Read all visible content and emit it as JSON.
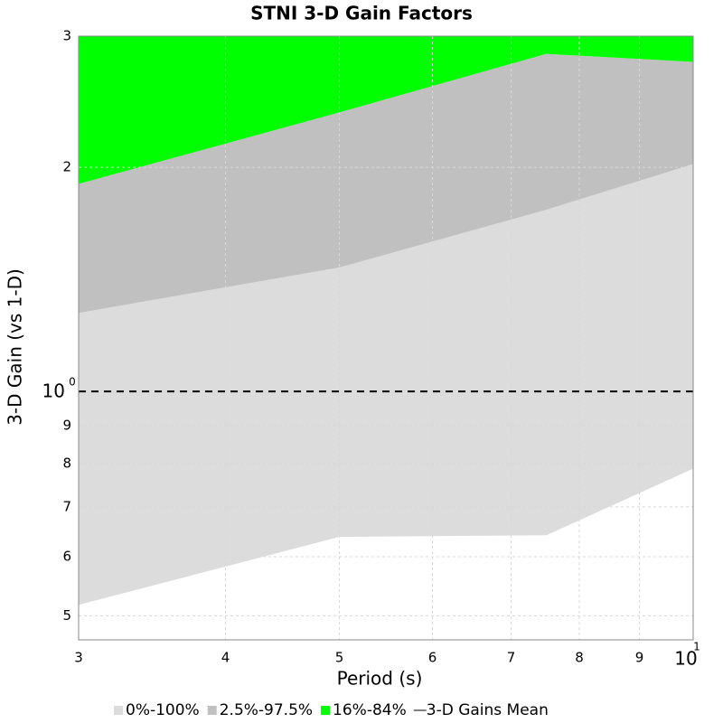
{
  "chart_data": {
    "type": "band",
    "title": "STNI 3-D Gain Factors",
    "x_label": "Period (s)",
    "y_label": "3-D Gain (vs 1-D)",
    "x_scale": "log",
    "y_scale": "log",
    "xlim": [
      3,
      10
    ],
    "ylim": [
      0.464,
      3
    ],
    "xticks": [
      3,
      4,
      5,
      6,
      7,
      8,
      9,
      {
        "value": 10,
        "label": "10",
        "exponent": "1"
      }
    ],
    "yticks": [
      {
        "value": 0.5,
        "label": "5"
      },
      {
        "value": 0.6,
        "label": "6"
      },
      {
        "value": 0.7,
        "label": "7"
      },
      {
        "value": 0.8,
        "label": "8"
      },
      {
        "value": 0.9,
        "label": "9"
      },
      {
        "value": 1,
        "label": "10",
        "exponent": "0"
      },
      2,
      3
    ],
    "grid": true,
    "reference_line": 1,
    "x": [
      3,
      5,
      7.5,
      10
    ],
    "series": [
      {
        "name": "0%-100%",
        "color": "#dcdcdc",
        "lower": [
          0.517,
          0.638,
          0.641,
          0.788
        ],
        "upper": [
          1.275,
          1.467,
          1.754,
          2.02
        ]
      },
      {
        "name": "2.5%-97.5%",
        "color": "#c0c0c0",
        "lower": [
          1.275,
          1.467,
          1.754,
          2.02
        ],
        "upper": [
          1.9,
          2.37,
          2.84,
          2.77
        ]
      },
      {
        "name": "16%-84%",
        "color": "#00ff00",
        "lower": [
          1.9,
          2.37,
          2.84,
          2.77
        ],
        "upper": [
          3,
          3,
          3,
          3
        ]
      },
      {
        "name": "3-D Gains Mean",
        "color": "#808080",
        "kind": "line"
      }
    ]
  }
}
